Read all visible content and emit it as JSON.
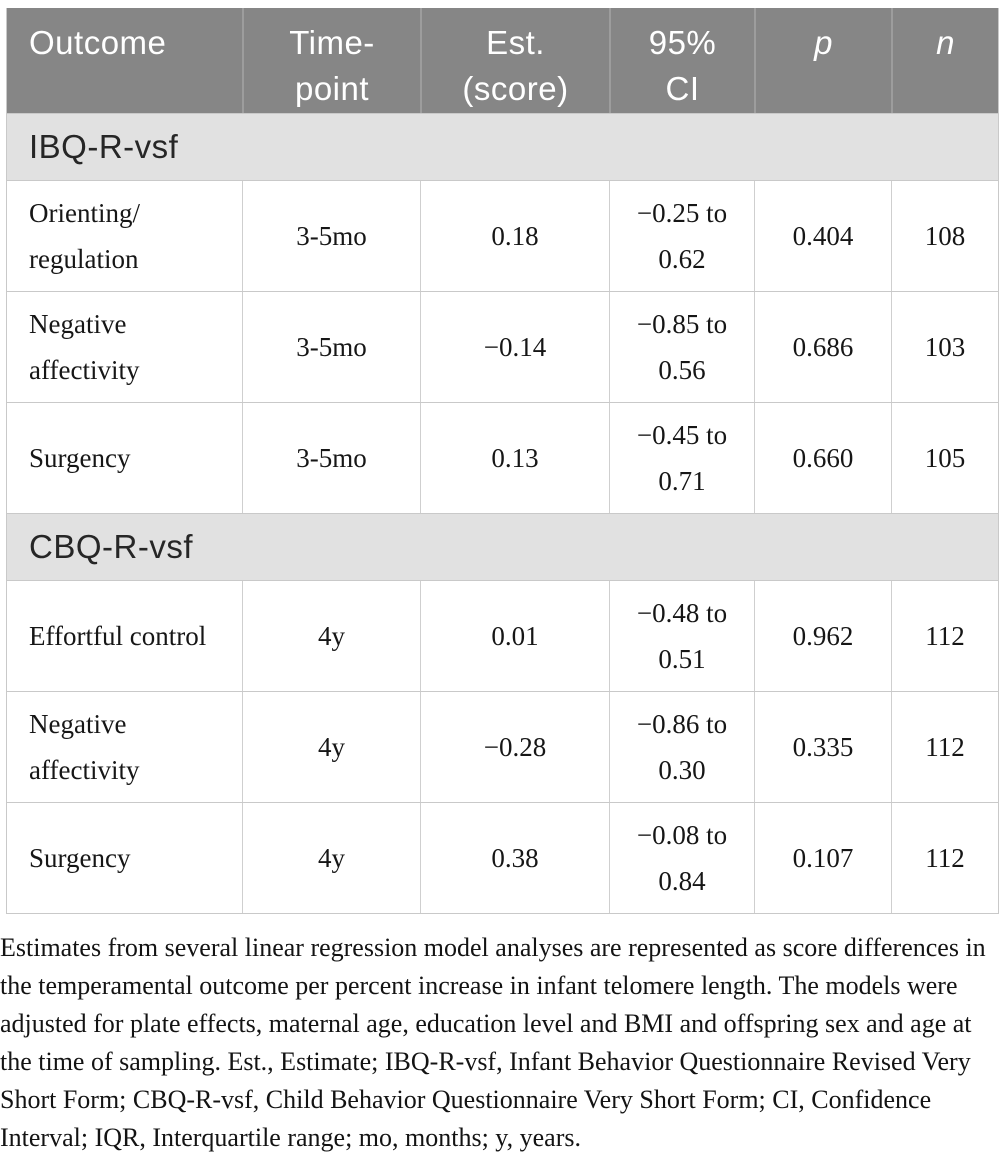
{
  "table": {
    "header": {
      "outcome": "Outcome",
      "timepoint": "Time-\npoint",
      "est": "Est.\n(score)",
      "ci": "95%\nCI",
      "p": "p",
      "n": "n"
    },
    "sections": [
      {
        "label": "IBQ-R-vsf",
        "rows": [
          {
            "outcome": "Orienting/\nregulation",
            "timepoint": "3-5mo",
            "est": "0.18",
            "ci": "−0.25 to\n0.62",
            "p": "0.404",
            "n": "108"
          },
          {
            "outcome": "Negative\naffectivity",
            "timepoint": "3-5mo",
            "est": "−0.14",
            "ci": "−0.85 to\n0.56",
            "p": "0.686",
            "n": "103"
          },
          {
            "outcome": "Surgency",
            "timepoint": "3-5mo",
            "est": "0.13",
            "ci": "−0.45 to\n0.71",
            "p": "0.660",
            "n": "105"
          }
        ]
      },
      {
        "label": "CBQ-R-vsf",
        "rows": [
          {
            "outcome": "Effortful control",
            "timepoint": "4y",
            "est": "0.01",
            "ci": "−0.48 to\n0.51",
            "p": "0.962",
            "n": "112"
          },
          {
            "outcome": "Negative\naffectivity",
            "timepoint": "4y",
            "est": "−0.28",
            "ci": "−0.86 to\n0.30",
            "p": "0.335",
            "n": "112"
          },
          {
            "outcome": "Surgency",
            "timepoint": "4y",
            "est": "0.38",
            "ci": "−0.08 to\n0.84",
            "p": "0.107",
            "n": "112"
          }
        ]
      }
    ]
  },
  "footnote": "Estimates from several linear regression model analyses are represented as score differences in the temperamental outcome per percent increase in infant telomere length. The models were adjusted for plate effects, maternal age, education level and BMI and offspring sex and age at the time of sampling. Est., Estimate; IBQ-R-vsf, Infant Behavior Questionnaire Revised Very Short Form; CBQ-R-vsf, Child Behavior Questionnaire Very Short Form; CI, Confidence Interval; IQR, Interquartile range; mo, months; y, years.",
  "colors": {
    "header_bg": "#868686",
    "header_text": "#ffffff",
    "header_divider": "#9d9d9d",
    "section_bg": "#e1e1e1",
    "row_border": "#c9c9c9",
    "cell_divider": "#cfcfcf",
    "body_text": "#161616"
  }
}
